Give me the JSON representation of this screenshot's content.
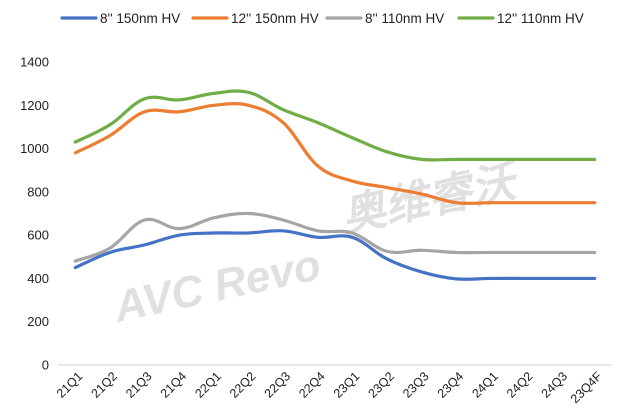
{
  "chart_data": {
    "type": "line",
    "title": "",
    "xlabel": "",
    "ylabel": "",
    "ylim": [
      0,
      1400
    ],
    "yticks": [
      0,
      200,
      400,
      600,
      800,
      1000,
      1200,
      1400
    ],
    "grid": false,
    "legend": "top",
    "categories": [
      "21Q1",
      "21Q2",
      "21Q3",
      "21Q4",
      "22Q1",
      "22Q2",
      "22Q3",
      "22Q4",
      "23Q1",
      "23Q2",
      "23Q3",
      "23Q4",
      "24Q1",
      "24Q2",
      "24Q3",
      "23Q4F"
    ],
    "series": [
      {
        "name": "8'' 150nm HV",
        "color": "#4472c4",
        "values": [
          450,
          520,
          555,
          600,
          610,
          610,
          620,
          590,
          590,
          490,
          430,
          398,
          400,
          400,
          400,
          400
        ]
      },
      {
        "name": "12'' 150nm HV",
        "color": "#ed7d31",
        "values": [
          980,
          1060,
          1170,
          1170,
          1200,
          1200,
          1120,
          920,
          850,
          820,
          790,
          750,
          750,
          750,
          750,
          750
        ]
      },
      {
        "name": "8'' 110nm HV",
        "color": "#a5a5a5",
        "values": [
          480,
          540,
          670,
          630,
          680,
          700,
          670,
          620,
          610,
          525,
          530,
          520,
          520,
          520,
          520,
          520
        ]
      },
      {
        "name": "12'' 110nm HV",
        "color": "#70ad47",
        "values": [
          1030,
          1110,
          1230,
          1225,
          1255,
          1260,
          1180,
          1120,
          1050,
          985,
          950,
          950,
          950,
          950,
          950,
          950
        ]
      }
    ]
  },
  "watermark": {
    "latin": "AVC Revo",
    "chinese": "奥维睿沃"
  }
}
